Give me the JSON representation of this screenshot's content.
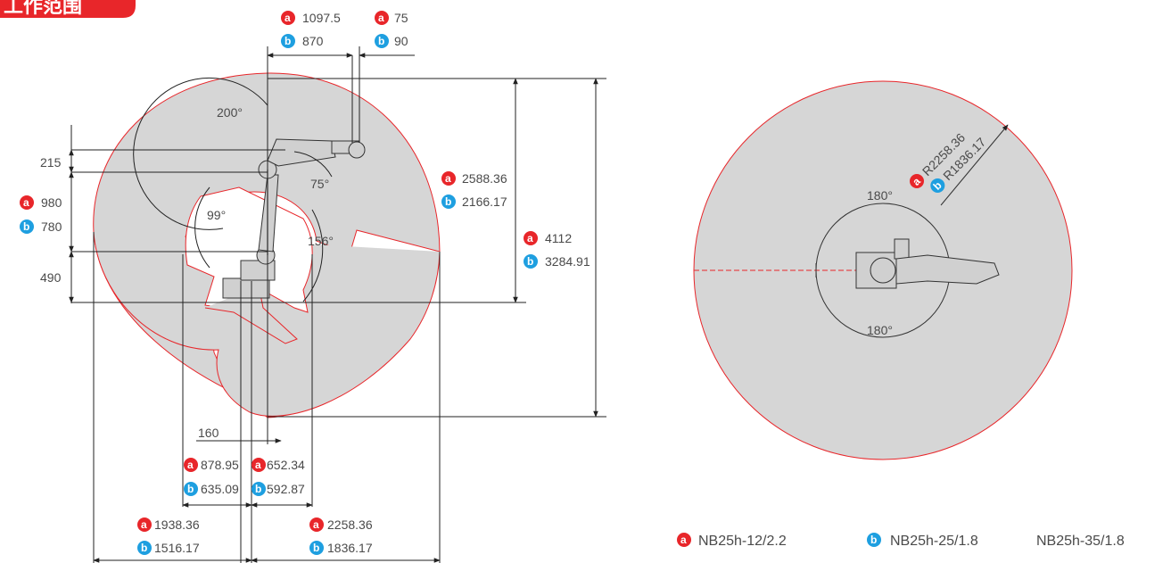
{
  "title": "工作范围",
  "colors": {
    "region_fill": "#d6d6d6",
    "boundary": "#e8262a",
    "badge_a": "#e8262a",
    "badge_b": "#1e9fe0",
    "dimension_line": "#222222"
  },
  "badges": {
    "a": "a",
    "b": "b"
  },
  "side_view": {
    "top_dims": {
      "a_left": "1097.5",
      "b_left": "870",
      "a_right": "75",
      "b_right": "90"
    },
    "left_dims": {
      "d215": "215",
      "a_980": "980",
      "b_780": "780",
      "d490": "490"
    },
    "angles": {
      "a200": "200°",
      "a75": "75°",
      "a99": "99°",
      "a156": "156°"
    },
    "right_dims": {
      "a_reach": "2588.36",
      "b_reach": "2166.17",
      "a_height": "4112",
      "b_height": "3284.91"
    },
    "bottom_dims": {
      "d160": "160",
      "a_left_inner": "878.95",
      "b_left_inner": "635.09",
      "a_right_inner": "652.34",
      "b_right_inner": "592.87",
      "a_left_outer": "1938.36",
      "b_left_outer": "1516.17",
      "a_right_outer": "2258.36",
      "b_right_outer": "1836.17"
    }
  },
  "top_view": {
    "radius_a": "R2258.36",
    "radius_b": "R1836.17",
    "angle_top": "180°",
    "angle_bottom": "180°"
  },
  "legend": {
    "a_model": "NB25h-12/2.2",
    "b_model": "NB25h-25/1.8",
    "c_model": "NB25h-35/1.8"
  }
}
